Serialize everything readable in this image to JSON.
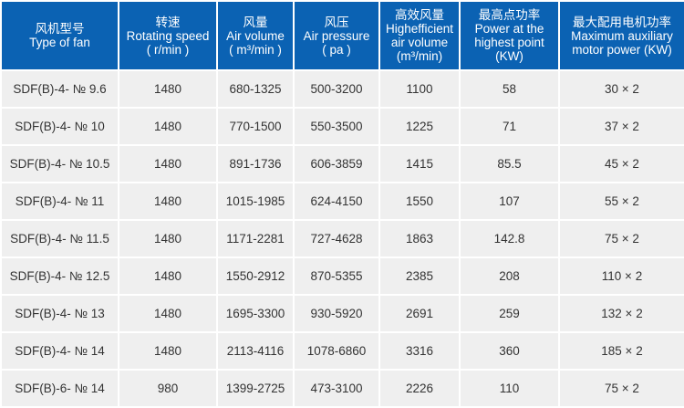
{
  "header_color": "#0b62b3",
  "columns": [
    {
      "cn": "风机型号",
      "en": [
        "Type of fan"
      ]
    },
    {
      "cn": "转速",
      "en": [
        "Rotating speed",
        "( r/min )"
      ]
    },
    {
      "cn": "风量",
      "en": [
        "Air volume",
        "( m³/min )"
      ]
    },
    {
      "cn": "风压",
      "en": [
        "Air pressure",
        "( pa )"
      ]
    },
    {
      "cn": "高效风量",
      "en": [
        "Highefficient",
        "air volume",
        "(m³/min)"
      ]
    },
    {
      "cn": "最高点功率",
      "en": [
        "Power at the",
        "highest point",
        "(KW)"
      ]
    },
    {
      "cn": "最大配用电机功率",
      "en": [
        "Maximum auxiliary",
        "motor power (KW)"
      ]
    }
  ],
  "rows": [
    [
      "SDF(B)-4- № 9.6",
      "1480",
      "680-1325",
      "500-3200",
      "1100",
      "58",
      "30 × 2"
    ],
    [
      "SDF(B)-4- № 10",
      "1480",
      "770-1500",
      "550-3500",
      "1225",
      "71",
      "37 × 2"
    ],
    [
      "SDF(B)-4- № 10.5",
      "1480",
      "891-1736",
      "606-3859",
      "1415",
      "85.5",
      "45 × 2"
    ],
    [
      "SDF(B)-4- № 11",
      "1480",
      "1015-1985",
      "624-4150",
      "1550",
      "107",
      "55 × 2"
    ],
    [
      "SDF(B)-4- № 11.5",
      "1480",
      "1171-2281",
      "727-4628",
      "1863",
      "142.8",
      "75 × 2"
    ],
    [
      "SDF(B)-4- № 12.5",
      "1480",
      "1550-2912",
      "870-5355",
      "2385",
      "208",
      "110 × 2"
    ],
    [
      "SDF(B)-4- № 13",
      "1480",
      "1695-3300",
      "930-5920",
      "2691",
      "259",
      "132 × 2"
    ],
    [
      "SDF(B)-4- № 14",
      "1480",
      "2113-4116",
      "1078-6860",
      "3316",
      "360",
      "185 × 2"
    ],
    [
      "SDF(B)-6- № 14",
      "980",
      "1399-2725",
      "473-3100",
      "2226",
      "110",
      "75 × 2"
    ]
  ]
}
